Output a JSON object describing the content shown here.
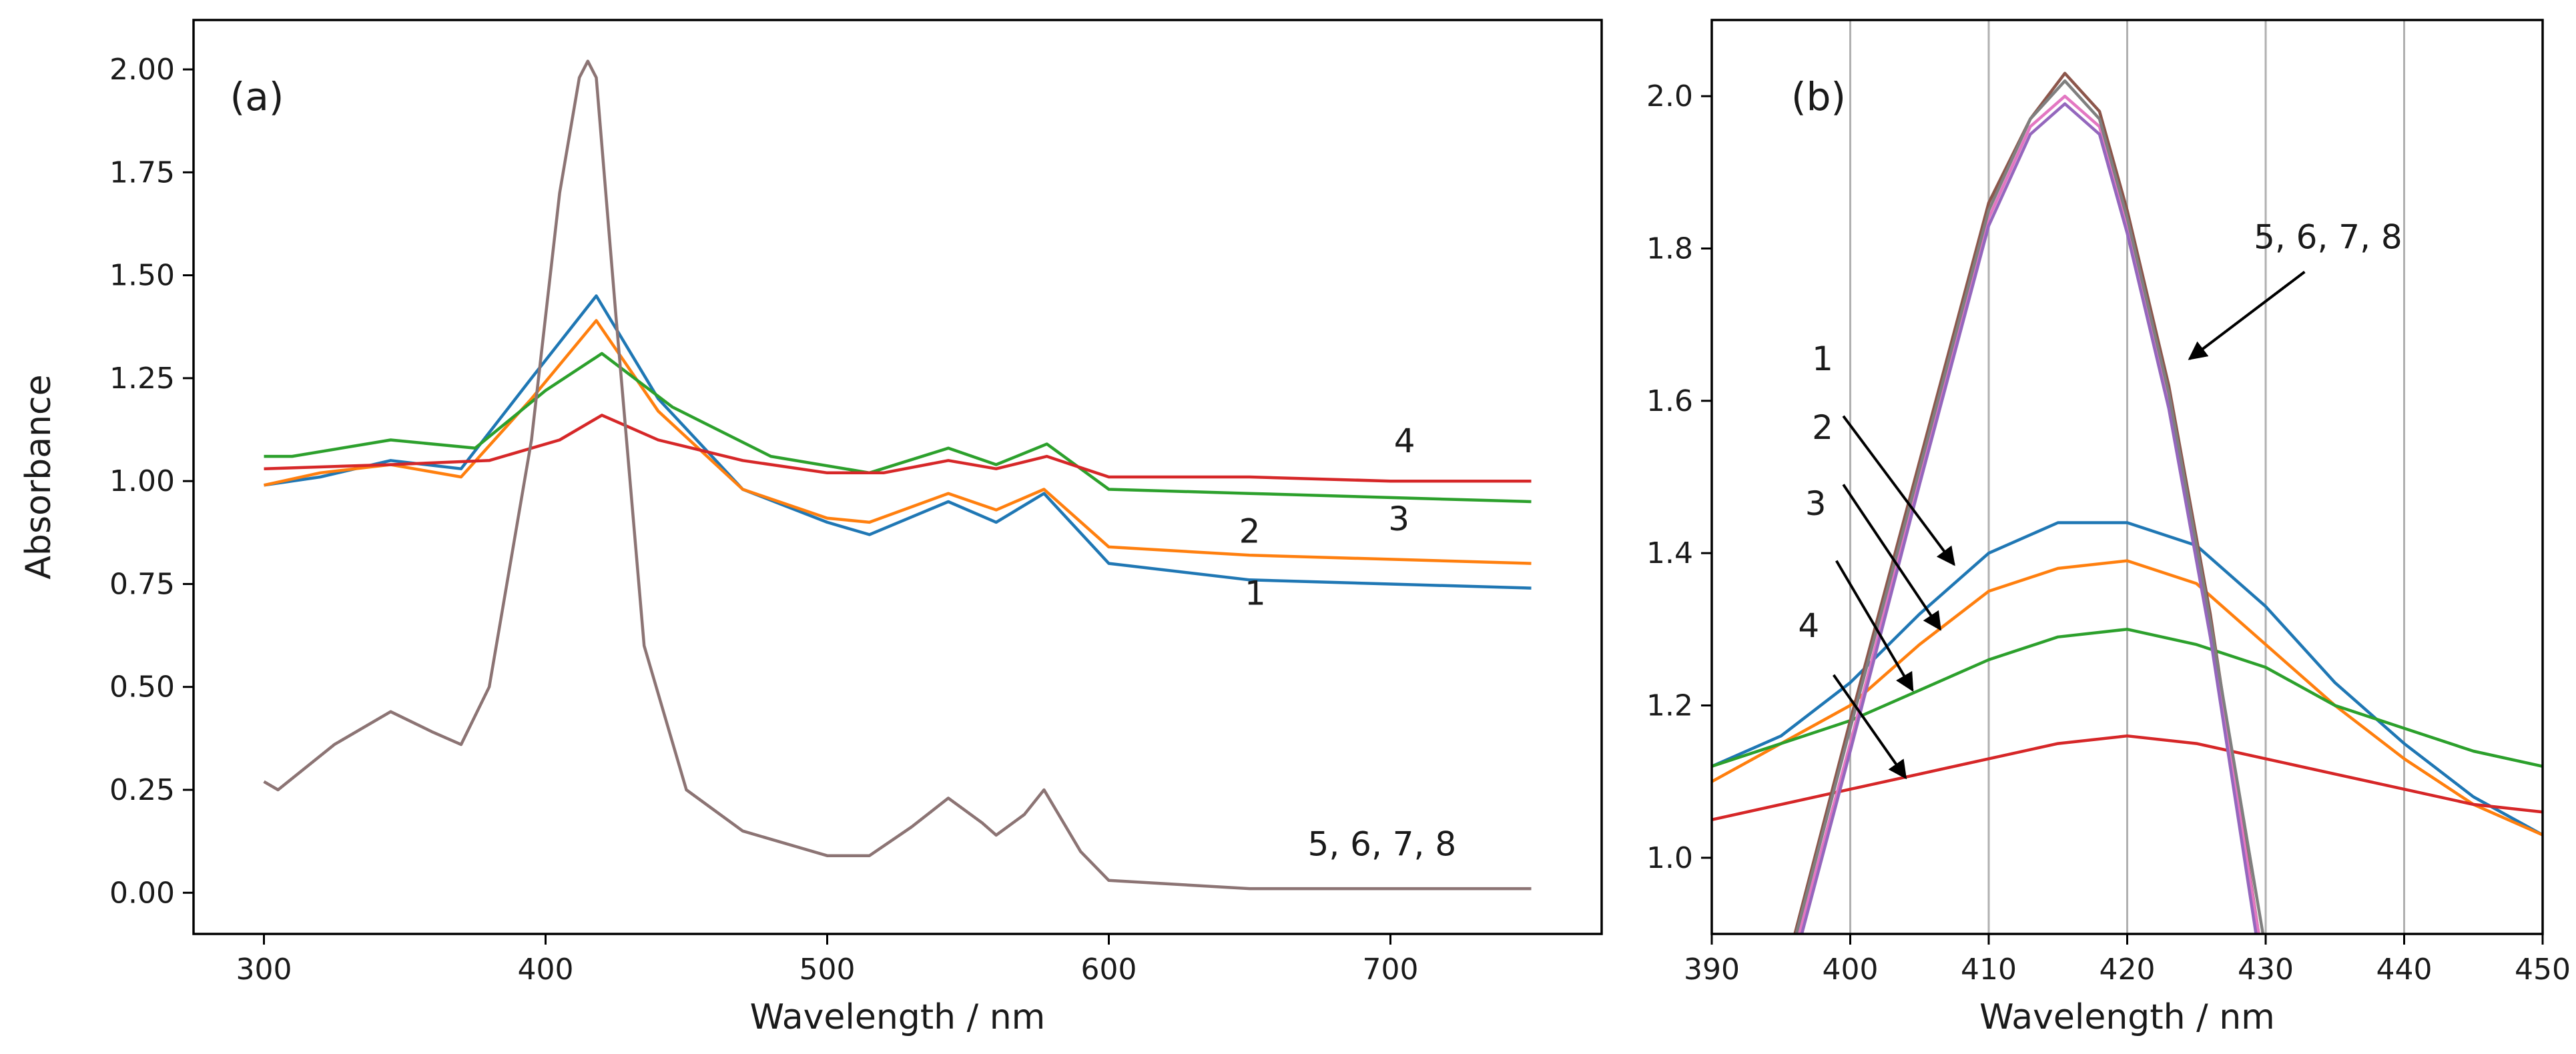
{
  "chart_data": [
    {
      "type": "line",
      "panel_label": "(a)",
      "xlabel": "Wavelength / nm",
      "ylabel": "Absorbance",
      "xlim": [
        275,
        775
      ],
      "ylim": [
        -0.1,
        2.12
      ],
      "xticks": [
        300,
        400,
        500,
        600,
        700
      ],
      "yticks": [
        0.0,
        0.25,
        0.5,
        0.75,
        1.0,
        1.25,
        1.5,
        1.75,
        2.0
      ],
      "ytick_labels": [
        "0.00",
        "0.25",
        "0.50",
        "0.75",
        "1.00",
        "1.25",
        "1.50",
        "1.75",
        "2.00"
      ],
      "grid": false,
      "series": [
        {
          "name": "1",
          "color": "#1f77b4",
          "x": [
            300,
            320,
            345,
            370,
            395,
            418,
            440,
            470,
            500,
            515,
            543,
            560,
            577,
            600,
            650,
            700,
            750
          ],
          "y": [
            0.99,
            1.01,
            1.05,
            1.03,
            1.25,
            1.45,
            1.2,
            0.98,
            0.9,
            0.87,
            0.95,
            0.9,
            0.97,
            0.8,
            0.76,
            0.75,
            0.74
          ]
        },
        {
          "name": "2",
          "color": "#ff7f0e",
          "x": [
            300,
            320,
            345,
            370,
            395,
            418,
            440,
            470,
            500,
            515,
            543,
            560,
            577,
            600,
            650,
            700,
            750
          ],
          "y": [
            0.99,
            1.02,
            1.04,
            1.01,
            1.2,
            1.39,
            1.17,
            0.98,
            0.91,
            0.9,
            0.97,
            0.93,
            0.98,
            0.84,
            0.82,
            0.81,
            0.8
          ]
        },
        {
          "name": "3",
          "color": "#2ca02c",
          "x": [
            300,
            310,
            345,
            375,
            400,
            420,
            445,
            480,
            515,
            543,
            560,
            578,
            600,
            650,
            700,
            750
          ],
          "y": [
            1.06,
            1.06,
            1.1,
            1.08,
            1.22,
            1.31,
            1.18,
            1.06,
            1.02,
            1.08,
            1.04,
            1.09,
            0.98,
            0.97,
            0.96,
            0.95
          ]
        },
        {
          "name": "4",
          "color": "#d62728",
          "x": [
            300,
            345,
            380,
            405,
            420,
            440,
            470,
            500,
            520,
            543,
            560,
            578,
            600,
            650,
            700,
            750
          ],
          "y": [
            1.03,
            1.04,
            1.05,
            1.1,
            1.16,
            1.1,
            1.05,
            1.02,
            1.02,
            1.05,
            1.03,
            1.06,
            1.01,
            1.01,
            1.0,
            1.0
          ]
        },
        {
          "name": "5, 6, 7, 8",
          "color": "#8c7474",
          "x": [
            300,
            305,
            325,
            345,
            360,
            370,
            380,
            395,
            405,
            412,
            415,
            418,
            425,
            435,
            450,
            470,
            500,
            515,
            530,
            543,
            555,
            560,
            570,
            577,
            590,
            600,
            650,
            700,
            750
          ],
          "y": [
            0.27,
            0.25,
            0.36,
            0.44,
            0.39,
            0.36,
            0.5,
            1.1,
            1.7,
            1.98,
            2.02,
            1.98,
            1.4,
            0.6,
            0.25,
            0.15,
            0.09,
            0.09,
            0.16,
            0.23,
            0.17,
            0.14,
            0.19,
            0.25,
            0.1,
            0.03,
            0.01,
            0.01,
            0.01
          ]
        }
      ],
      "annotations": [
        {
          "text": "1",
          "x": 652,
          "y": 0.7
        },
        {
          "text": "2",
          "x": 650,
          "y": 0.85
        },
        {
          "text": "3",
          "x": 703,
          "y": 0.88
        },
        {
          "text": "4",
          "x": 705,
          "y": 1.07
        },
        {
          "text": "5, 6, 7, 8",
          "x": 697,
          "y": 0.09
        }
      ]
    },
    {
      "type": "line",
      "panel_label": "(b)",
      "xlabel": "Wavelength / nm",
      "ylabel": "",
      "xlim": [
        390,
        450
      ],
      "ylim": [
        0.9,
        2.1
      ],
      "xticks": [
        390,
        400,
        410,
        420,
        430,
        440,
        450
      ],
      "yticks": [
        1.0,
        1.2,
        1.4,
        1.6,
        1.8,
        2.0
      ],
      "ytick_labels": [
        "1.0",
        "1.2",
        "1.4",
        "1.6",
        "1.8",
        "2.0"
      ],
      "grid": true,
      "grid_axis": "x",
      "series": [
        {
          "name": "1",
          "color": "#1f77b4",
          "x": [
            390,
            395,
            400,
            405,
            410,
            415,
            420,
            425,
            430,
            435,
            440,
            445,
            450
          ],
          "y": [
            1.12,
            1.16,
            1.23,
            1.32,
            1.4,
            1.44,
            1.44,
            1.41,
            1.33,
            1.23,
            1.15,
            1.08,
            1.03
          ]
        },
        {
          "name": "2",
          "color": "#ff7f0e",
          "x": [
            390,
            395,
            400,
            405,
            410,
            415,
            420,
            425,
            430,
            435,
            440,
            445,
            450
          ],
          "y": [
            1.1,
            1.15,
            1.2,
            1.28,
            1.35,
            1.38,
            1.39,
            1.36,
            1.28,
            1.2,
            1.13,
            1.07,
            1.03
          ]
        },
        {
          "name": "3",
          "color": "#2ca02c",
          "x": [
            390,
            395,
            400,
            405,
            410,
            415,
            420,
            425,
            430,
            435,
            440,
            445,
            450
          ],
          "y": [
            1.12,
            1.15,
            1.18,
            1.22,
            1.26,
            1.29,
            1.3,
            1.28,
            1.25,
            1.2,
            1.17,
            1.14,
            1.12
          ]
        },
        {
          "name": "4",
          "color": "#d62728",
          "x": [
            390,
            395,
            400,
            405,
            410,
            415,
            420,
            425,
            430,
            435,
            440,
            445,
            450
          ],
          "y": [
            1.05,
            1.07,
            1.09,
            1.11,
            1.13,
            1.15,
            1.16,
            1.15,
            1.13,
            1.11,
            1.09,
            1.07,
            1.06
          ]
        },
        {
          "name": "5",
          "color": "#8c564b",
          "x": [
            396,
            400,
            405,
            410,
            413,
            415.5,
            418,
            420,
            423,
            426,
            429.5
          ],
          "y": [
            0.9,
            1.18,
            1.52,
            1.86,
            1.97,
            2.03,
            1.98,
            1.85,
            1.62,
            1.32,
            0.9
          ]
        },
        {
          "name": "6",
          "color": "#e377c2",
          "x": [
            396.3,
            400,
            405,
            410,
            413,
            415.5,
            418,
            420,
            423,
            426,
            429.5
          ],
          "y": [
            0.9,
            1.15,
            1.5,
            1.84,
            1.96,
            2.0,
            1.96,
            1.83,
            1.6,
            1.3,
            0.9
          ]
        },
        {
          "name": "7",
          "color": "#7f7f7f",
          "x": [
            396.1,
            400,
            405,
            410,
            413,
            415.5,
            418,
            420,
            423,
            426,
            429.8
          ],
          "y": [
            0.9,
            1.17,
            1.51,
            1.85,
            1.97,
            2.02,
            1.97,
            1.84,
            1.61,
            1.31,
            0.9
          ]
        },
        {
          "name": "8",
          "color": "#9467bd",
          "x": [
            396.5,
            400,
            405,
            410,
            413,
            415.5,
            418,
            420,
            423,
            426,
            429.3
          ],
          "y": [
            0.9,
            1.14,
            1.49,
            1.83,
            1.95,
            1.99,
            1.95,
            1.82,
            1.59,
            1.29,
            0.9
          ]
        }
      ],
      "annotations": [
        {
          "text": "5, 6, 7, 8",
          "x": 434.5,
          "y": 1.8,
          "arrow_to": {
            "x": 424.5,
            "y": 1.655
          }
        },
        {
          "text": "1",
          "x": 398,
          "y": 1.64,
          "arrow_from": {
            "x": 399.5,
            "y": 1.58
          },
          "arrow_to": {
            "x": 407.5,
            "y": 1.385
          }
        },
        {
          "text": "2",
          "x": 398,
          "y": 1.55,
          "arrow_from": {
            "x": 399.5,
            "y": 1.49
          },
          "arrow_to": {
            "x": 406.5,
            "y": 1.3
          }
        },
        {
          "text": "3",
          "x": 397.5,
          "y": 1.45,
          "arrow_from": {
            "x": 399,
            "y": 1.39
          },
          "arrow_to": {
            "x": 404.5,
            "y": 1.22
          }
        },
        {
          "text": "4",
          "x": 397,
          "y": 1.29,
          "arrow_from": {
            "x": 398.8,
            "y": 1.24
          },
          "arrow_to": {
            "x": 404,
            "y": 1.105
          }
        }
      ]
    }
  ]
}
